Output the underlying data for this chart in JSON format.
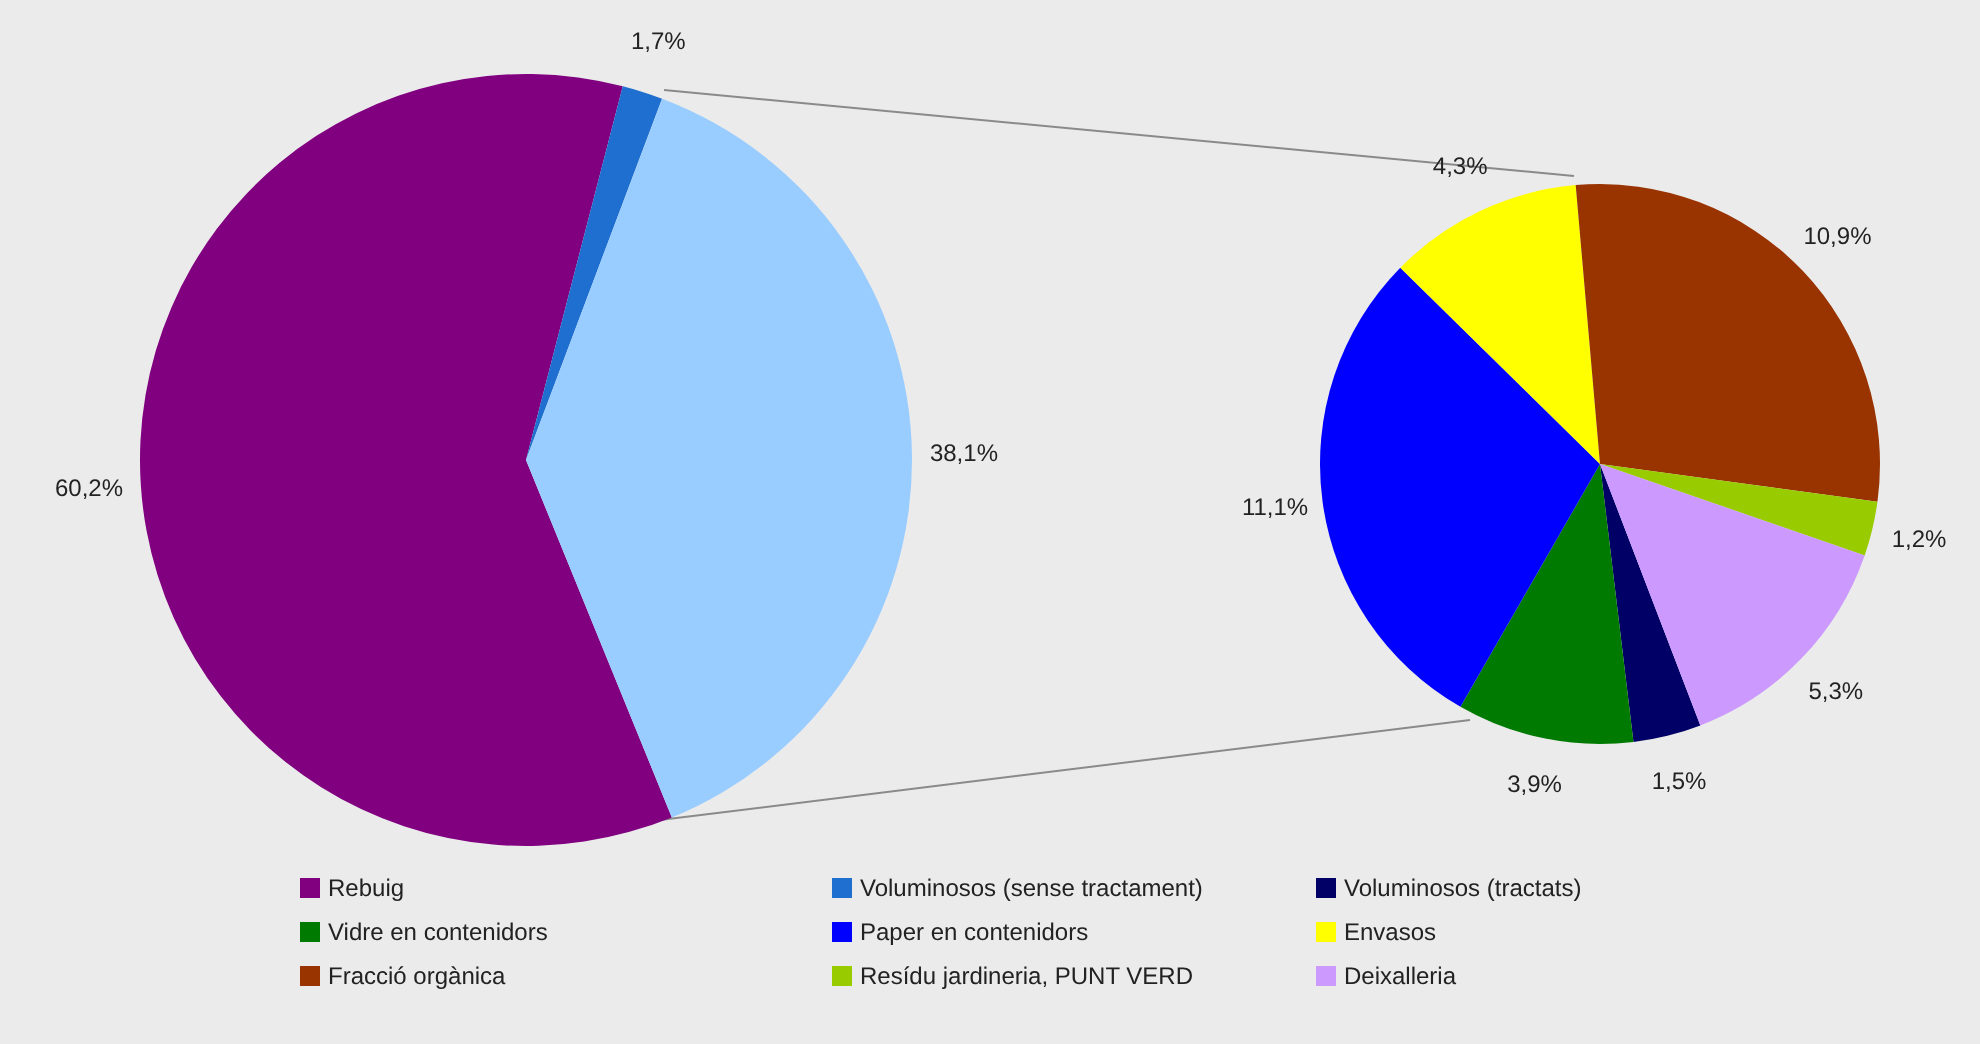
{
  "chart_data": [
    {
      "type": "pie",
      "categories": [
        "Rebuig",
        "Voluminosos (sense tractament)",
        null
      ],
      "values": [
        60.2,
        1.7,
        38.1
      ],
      "colors": [
        "#800080",
        "#1e6fcf",
        "#99ccff"
      ],
      "value_labels": [
        "60,2%",
        "1,7%",
        "38,1%"
      ],
      "legend": "bottom"
    },
    {
      "type": "pie",
      "categories": [
        "Voluminosos (tractats)",
        "Vidre en contenidors",
        "Paper en contenidors",
        "Envasos",
        "Fracció orgànica",
        "Resídu jardineria, PUNT VERD",
        "Deixalleria"
      ],
      "values": [
        1.5,
        3.9,
        11.1,
        4.3,
        10.9,
        1.2,
        5.3
      ],
      "colors": [
        "#000066",
        "#007a00",
        "#0000ff",
        "#ffff00",
        "#993300",
        "#99cc00",
        "#cc99ff"
      ],
      "value_labels": [
        "1,5%",
        "3,9%",
        "11,1%",
        "4,3%",
        "10,9%",
        "1,2%",
        "5,3%"
      ],
      "legend": "bottom"
    }
  ]
}
